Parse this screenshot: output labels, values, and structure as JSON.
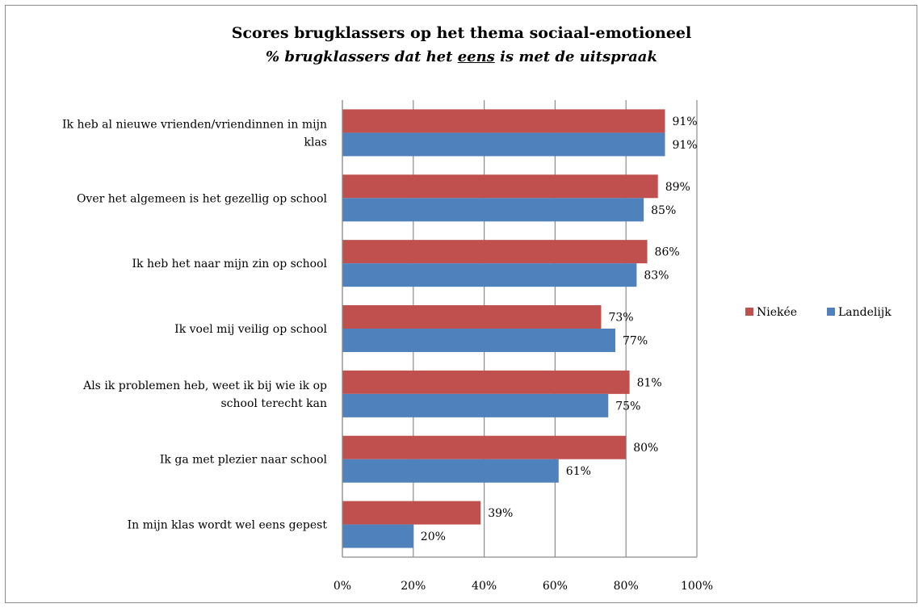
{
  "chart_data": {
    "type": "bar",
    "orientation": "horizontal",
    "title": "Scores brugklassers op het thema sociaal-emotioneel",
    "subtitle_parts": [
      "% brugklassers dat het ",
      "eens",
      " is met de uitspraak"
    ],
    "categories": [
      "Ik heb al nieuwe vrienden/vriendinnen  in mijn klas",
      "Over het algemeen is het  gezellig op school",
      "Ik heb het naar mijn zin op school",
      "Ik voel mij veilig op school",
      "Als ik problemen heb,  weet  ik bij wie ik op school terecht kan",
      "Ik ga met plezier naar school",
      "In mijn klas wordt wel eens gepest"
    ],
    "category_lines": [
      [
        "Ik heb al nieuwe vrienden/vriendinnen  in mijn",
        "klas"
      ],
      [
        "Over het algemeen is het  gezellig op school"
      ],
      [
        "Ik heb het naar mijn zin op school"
      ],
      [
        "Ik voel mij veilig op school"
      ],
      [
        "Als ik problemen heb,  weet  ik bij wie ik op",
        "school terecht kan"
      ],
      [
        "Ik ga met plezier naar school"
      ],
      [
        "In mijn klas wordt wel eens gepest"
      ]
    ],
    "series": [
      {
        "name": "Niekée",
        "color": "#c0504d",
        "values": [
          91,
          89,
          86,
          73,
          81,
          80,
          39
        ],
        "labels": [
          "91%",
          "89%",
          "86%",
          "73%",
          "81%",
          "80%",
          "39%"
        ]
      },
      {
        "name": "Landelijk",
        "color": "#4f81bd",
        "values": [
          91,
          85,
          83,
          77,
          75,
          61,
          20
        ],
        "labels": [
          "91%",
          "85%",
          "83%",
          "77%",
          "75%",
          "61%",
          "20%"
        ]
      }
    ],
    "xlim": [
      0,
      100
    ],
    "xticks": [
      "0%",
      "20%",
      "40%",
      "60%",
      "80%",
      "100%"
    ],
    "grid": true,
    "legend": "right"
  }
}
